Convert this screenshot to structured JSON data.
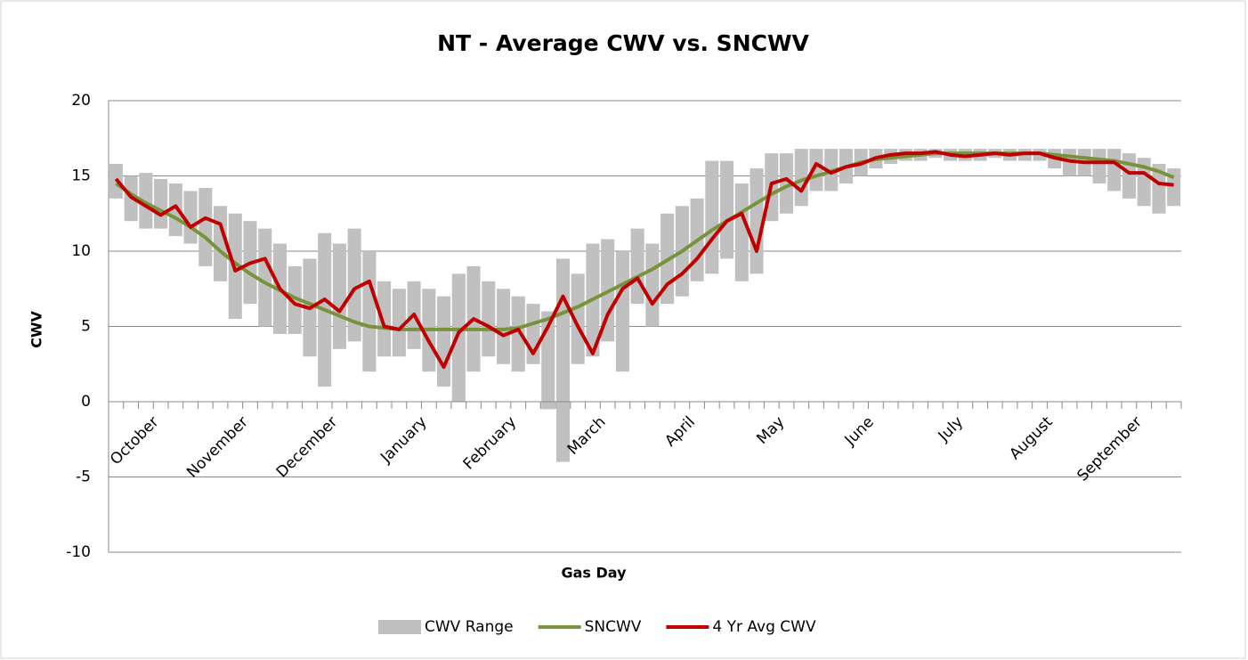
{
  "chart_data": {
    "type": "line",
    "title": "NT - Average CWV vs. SNCWV",
    "x_label": "Gas Day",
    "y_label": "CWV",
    "categories": [
      "October",
      null,
      null,
      null,
      null,
      null,
      "November",
      null,
      null,
      null,
      null,
      null,
      "December",
      null,
      null,
      null,
      null,
      null,
      "January",
      null,
      null,
      null,
      null,
      null,
      "February",
      null,
      null,
      null,
      null,
      null,
      "March",
      null,
      null,
      null,
      null,
      null,
      "April",
      null,
      null,
      null,
      null,
      null,
      "May",
      null,
      null,
      null,
      null,
      null,
      "June",
      null,
      null,
      null,
      null,
      null,
      "July",
      null,
      null,
      null,
      null,
      null,
      "August",
      null,
      null,
      null,
      null,
      null,
      "September",
      null,
      null,
      null,
      null,
      null
    ],
    "ylim": [
      -10,
      20
    ],
    "yticks": [
      -10,
      -5,
      0,
      5,
      10,
      15,
      20
    ],
    "grid": true,
    "legend": "bottom",
    "series": [
      {
        "name": "CWV Range",
        "color": "#c0c0c0",
        "type": "range",
        "low": [
          13.5,
          12.0,
          11.5,
          11.5,
          11.0,
          10.5,
          9.0,
          8.0,
          5.5,
          6.5,
          5.0,
          4.5,
          4.5,
          3.0,
          1.0,
          3.5,
          4.0,
          2.0,
          3.0,
          3.0,
          3.5,
          2.0,
          1.0,
          0.0,
          2.0,
          3.0,
          2.5,
          2.0,
          2.5,
          -0.5,
          -4.0,
          2.5,
          3.0,
          4.0,
          2.0,
          6.5,
          5.0,
          6.5,
          7.0,
          8.0,
          8.5,
          9.5,
          8.0,
          8.5,
          12.0,
          12.5,
          13.0,
          14.0,
          14.0,
          14.5,
          15.0,
          15.5,
          15.8,
          16.0,
          16.0,
          16.2,
          16.0,
          16.0,
          16.0,
          16.2,
          16.0,
          16.0,
          16.0,
          15.5,
          15.0,
          15.0,
          14.5,
          14.0,
          13.5,
          13.0,
          12.5,
          13.0
        ],
        "high": [
          15.8,
          15.0,
          15.2,
          14.8,
          14.5,
          14.0,
          14.2,
          13.0,
          12.5,
          12.0,
          11.5,
          10.5,
          9.0,
          9.5,
          11.2,
          10.5,
          11.5,
          10.0,
          8.0,
          7.5,
          8.0,
          7.5,
          7.0,
          8.5,
          9.0,
          8.0,
          7.5,
          7.0,
          6.5,
          6.0,
          9.5,
          8.5,
          10.5,
          10.8,
          10.0,
          11.5,
          10.5,
          12.5,
          13.0,
          13.5,
          16.0,
          16.0,
          14.5,
          15.5,
          16.5,
          16.5,
          16.8,
          16.8,
          16.8,
          16.8,
          16.8,
          16.8,
          16.8,
          16.8,
          16.8,
          16.8,
          16.8,
          16.8,
          16.8,
          16.8,
          16.8,
          16.8,
          16.8,
          16.8,
          16.8,
          16.8,
          16.8,
          16.8,
          16.5,
          16.2,
          15.8,
          15.5
        ]
      },
      {
        "name": "SNCWV",
        "color": "#77933c",
        "values": [
          14.5,
          13.8,
          13.2,
          12.7,
          12.2,
          11.6,
          10.9,
          10.0,
          9.2,
          8.5,
          7.9,
          7.4,
          6.9,
          6.5,
          6.1,
          5.7,
          5.3,
          5.0,
          4.9,
          4.8,
          4.8,
          4.8,
          4.8,
          4.8,
          4.8,
          4.8,
          4.8,
          4.9,
          5.2,
          5.5,
          5.9,
          6.3,
          6.8,
          7.3,
          7.8,
          8.3,
          8.8,
          9.4,
          10.0,
          10.7,
          11.4,
          12.0,
          12.6,
          13.2,
          13.8,
          14.3,
          14.7,
          15.0,
          15.3,
          15.6,
          15.9,
          16.1,
          16.2,
          16.3,
          16.4,
          16.5,
          16.5,
          16.5,
          16.5,
          16.5,
          16.5,
          16.5,
          16.5,
          16.4,
          16.3,
          16.2,
          16.1,
          16.0,
          15.8,
          15.6,
          15.3,
          14.9
        ]
      },
      {
        "name": "4 Yr Avg CWV",
        "color": "#c00000",
        "values": [
          14.8,
          13.6,
          13.0,
          12.4,
          13.0,
          11.6,
          12.2,
          11.8,
          8.7,
          9.2,
          9.5,
          7.5,
          6.5,
          6.2,
          6.8,
          6.0,
          7.5,
          8.0,
          5.0,
          4.8,
          5.8,
          4.0,
          2.3,
          4.6,
          5.5,
          5.0,
          4.4,
          4.8,
          3.2,
          5.0,
          7.0,
          5.0,
          3.2,
          5.8,
          7.5,
          8.2,
          6.5,
          7.8,
          8.5,
          9.5,
          10.8,
          12.0,
          12.5,
          10.0,
          14.5,
          14.8,
          14.0,
          15.8,
          15.2,
          15.6,
          15.8,
          16.2,
          16.4,
          16.5,
          16.5,
          16.6,
          16.4,
          16.3,
          16.4,
          16.5,
          16.4,
          16.5,
          16.5,
          16.2,
          16.0,
          15.9,
          15.9,
          15.9,
          15.2,
          15.2,
          14.5,
          14.4
        ]
      }
    ]
  }
}
